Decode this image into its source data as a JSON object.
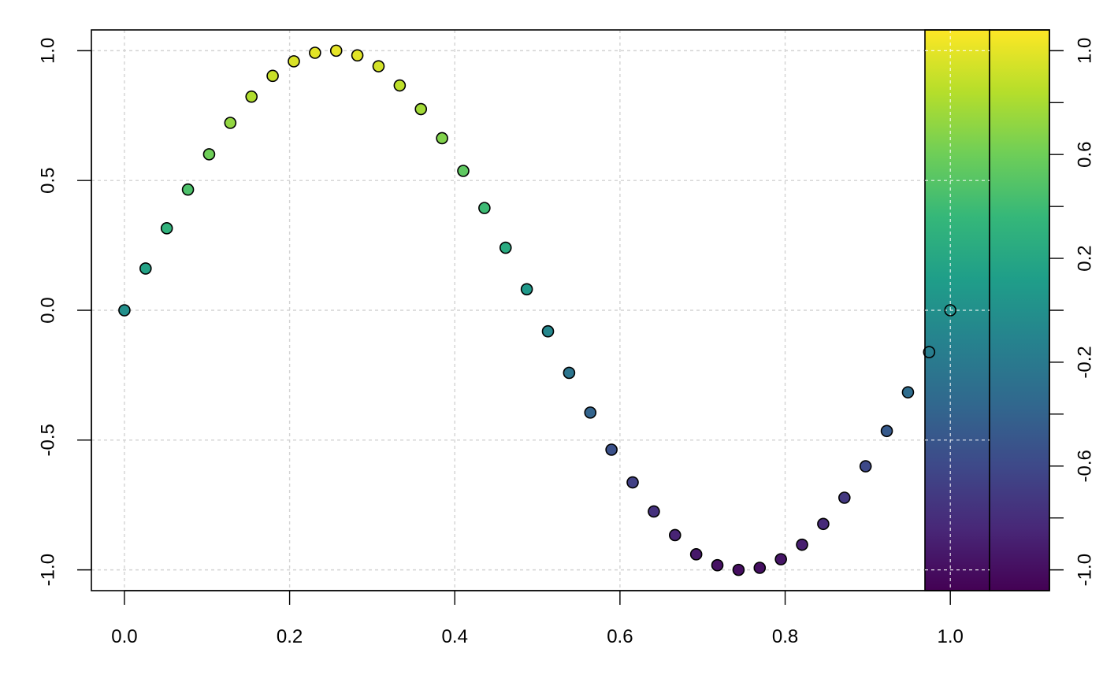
{
  "chart_data": {
    "type": "scatter",
    "title": "",
    "xlabel": "",
    "ylabel": "",
    "xlim": [
      -0.04,
      1.12
    ],
    "ylim": [
      -1.08,
      1.08
    ],
    "grid": true,
    "x_ticks": [
      "0.0",
      "0.2",
      "0.4",
      "0.6",
      "0.8",
      "1.0"
    ],
    "x_tick_values": [
      0,
      0.2,
      0.4,
      0.6,
      0.8,
      1.0
    ],
    "y_ticks": [
      "-1.0",
      "-0.5",
      "0.0",
      "0.5",
      "1.0"
    ],
    "y_tick_values": [
      -1.0,
      -0.5,
      0.0,
      0.5,
      1.0
    ],
    "color_encoding": "y",
    "series": [
      {
        "x": [
          0.0,
          0.02564,
          0.05128,
          0.07692,
          0.10256,
          0.12821,
          0.15385,
          0.17949,
          0.20513,
          0.23077,
          0.25641,
          0.28205,
          0.30769,
          0.33333,
          0.35897,
          0.38462,
          0.41026,
          0.4359,
          0.46154,
          0.48718,
          0.51282,
          0.53846,
          0.5641,
          0.58974,
          0.61538,
          0.64103,
          0.66667,
          0.69231,
          0.71795,
          0.74359,
          0.76923,
          0.79487,
          0.82051,
          0.84615,
          0.87179,
          0.89744,
          0.92308,
          0.94872,
          0.97436,
          1.0
        ],
        "y": [
          0.0,
          0.161,
          0.316,
          0.465,
          0.601,
          0.722,
          0.823,
          0.903,
          0.959,
          0.992,
          1.0,
          0.982,
          0.94,
          0.866,
          0.775,
          0.663,
          0.537,
          0.394,
          0.241,
          0.081,
          -0.081,
          -0.241,
          -0.394,
          -0.537,
          -0.663,
          -0.775,
          -0.866,
          -0.94,
          -0.982,
          -1.0,
          -0.992,
          -0.959,
          -0.903,
          -0.823,
          -0.722,
          -0.601,
          -0.465,
          -0.316,
          -0.161,
          0.0
        ]
      }
    ],
    "colorbar": {
      "palette": "viridis",
      "range": [
        -1.08,
        1.08
      ],
      "tick_labels": [
        "-1.0",
        "-0.6",
        "-0.2",
        "0.2",
        "0.6",
        "1.0"
      ],
      "tick_values": [
        -1.0,
        -0.6,
        -0.2,
        0.2,
        0.6,
        1.0
      ],
      "minor_tick_values": [
        -0.8,
        -0.4,
        0.0,
        0.4,
        0.8
      ],
      "colors": [
        "#440154",
        "#482878",
        "#3e4989",
        "#31688e",
        "#26828e",
        "#1f9e89",
        "#35b779",
        "#6ece58",
        "#b5de2b",
        "#fde725"
      ]
    }
  }
}
